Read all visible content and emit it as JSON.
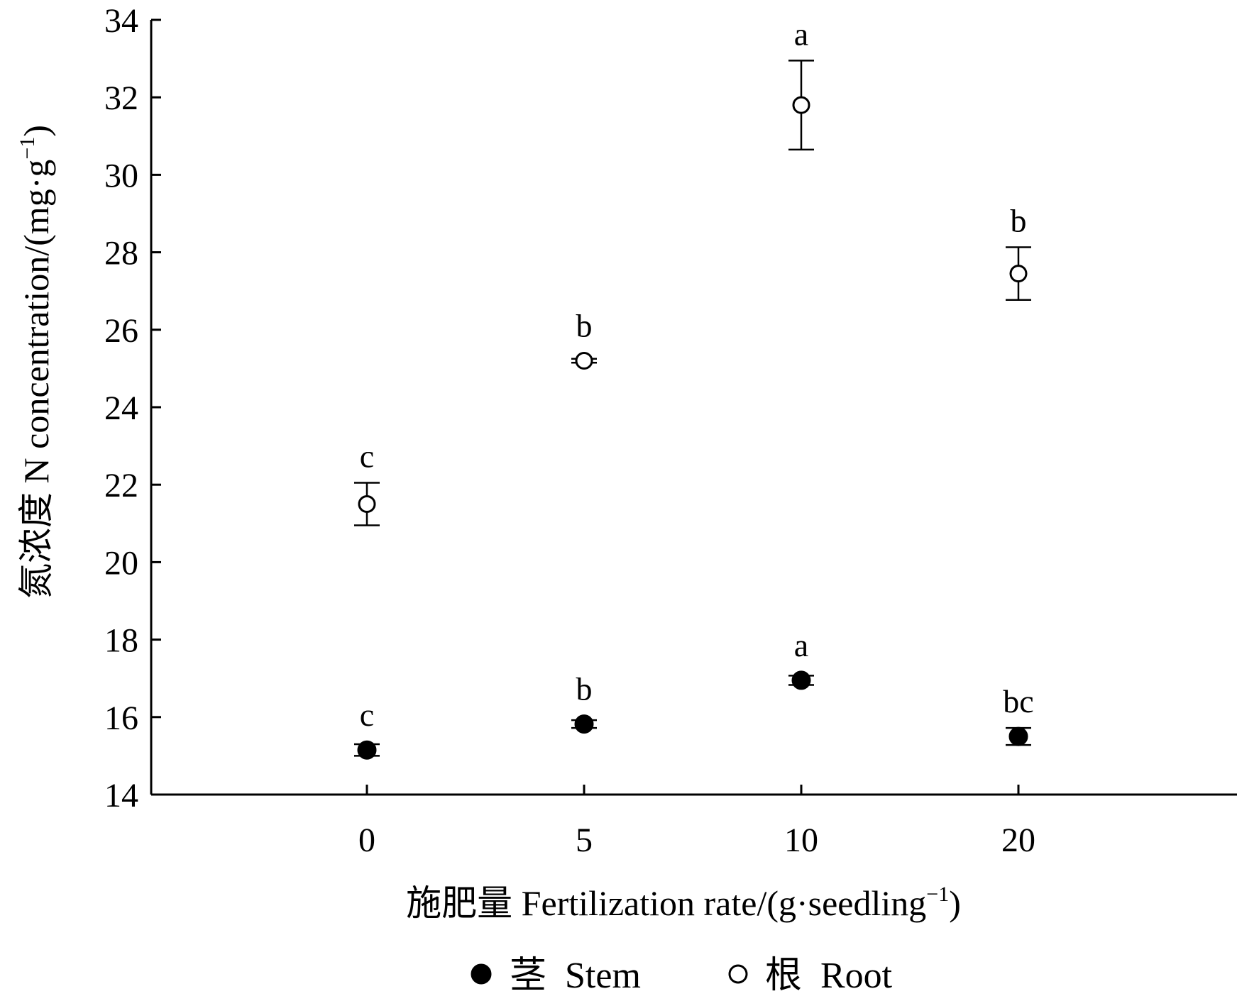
{
  "chart_data": {
    "type": "scatter",
    "categories": [
      "0",
      "5",
      "10",
      "20"
    ],
    "x_tick_labels": [
      "0",
      "5",
      "10",
      "20"
    ],
    "ylim": [
      14,
      34
    ],
    "y_ticks": [
      14,
      16,
      18,
      20,
      22,
      24,
      26,
      28,
      30,
      32,
      34
    ],
    "xlabel": {
      "main": "施肥量  Fertilization rate/(g·seedling",
      "sup": "−1",
      "tail": ")"
    },
    "ylabel": {
      "main": "氮浓度  N concentration/(mg·g",
      "sup": "−1",
      "tail": ")"
    },
    "grid": false,
    "legend_position": "bottom",
    "series": [
      {
        "name": "茎  Stem",
        "marker": "filled-circle",
        "color": "#000000",
        "values": [
          15.15,
          15.82,
          16.95,
          15.5
        ],
        "errors": [
          0.15,
          0.1,
          0.12,
          0.22
        ],
        "significance": [
          "c",
          "b",
          "a",
          "bc"
        ]
      },
      {
        "name": "根  Root",
        "marker": "open-circle",
        "color": "#000000",
        "values": [
          21.5,
          25.2,
          31.8,
          27.45
        ],
        "errors": [
          0.55,
          0.05,
          1.15,
          0.68
        ],
        "significance": [
          "c",
          "b",
          "a",
          "b"
        ]
      }
    ]
  }
}
